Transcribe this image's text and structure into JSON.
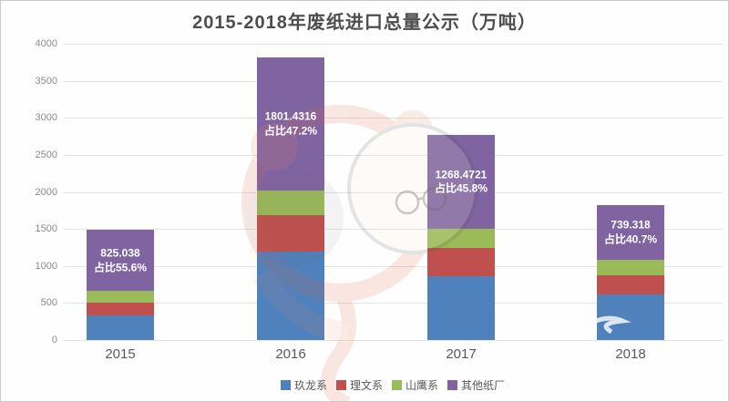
{
  "chart_data": {
    "type": "bar",
    "stacked": true,
    "title": "2015-2018年废纸进口总量公示（万吨）",
    "unit": "万吨",
    "categories": [
      "2015",
      "2016",
      "2017",
      "2018"
    ],
    "series": [
      {
        "name": "玖龙系",
        "color": "#4f81bd",
        "values": [
          335,
          1195,
          860,
          620
        ]
      },
      {
        "name": "理文系",
        "color": "#c0504d",
        "values": [
          168,
          497,
          385,
          253
        ]
      },
      {
        "name": "山鹰系",
        "color": "#9bbb59",
        "values": [
          156,
          323,
          256,
          204
        ]
      },
      {
        "name": "其他纸厂",
        "color": "#8064a2",
        "values": [
          825.038,
          1801.4316,
          1268.4721,
          739.318
        ]
      }
    ],
    "bar_labels": [
      {
        "line1": "825.038",
        "line2": "占比55.6%"
      },
      {
        "line1": "1801.4316",
        "line2": "占比47.2%"
      },
      {
        "line1": "1268.4721",
        "line2": "占比45.8%"
      },
      {
        "line1": "739.318",
        "line2": "占比40.7%"
      }
    ],
    "ylim": [
      0,
      4000
    ],
    "ytick_step": 500,
    "yticks": [
      "4000",
      "3500",
      "3000",
      "2500",
      "2000",
      "1500",
      "1000",
      "500",
      "0"
    ],
    "grid": true,
    "legend_position": "bottom"
  },
  "watermark": {
    "color": "#e0643c"
  }
}
